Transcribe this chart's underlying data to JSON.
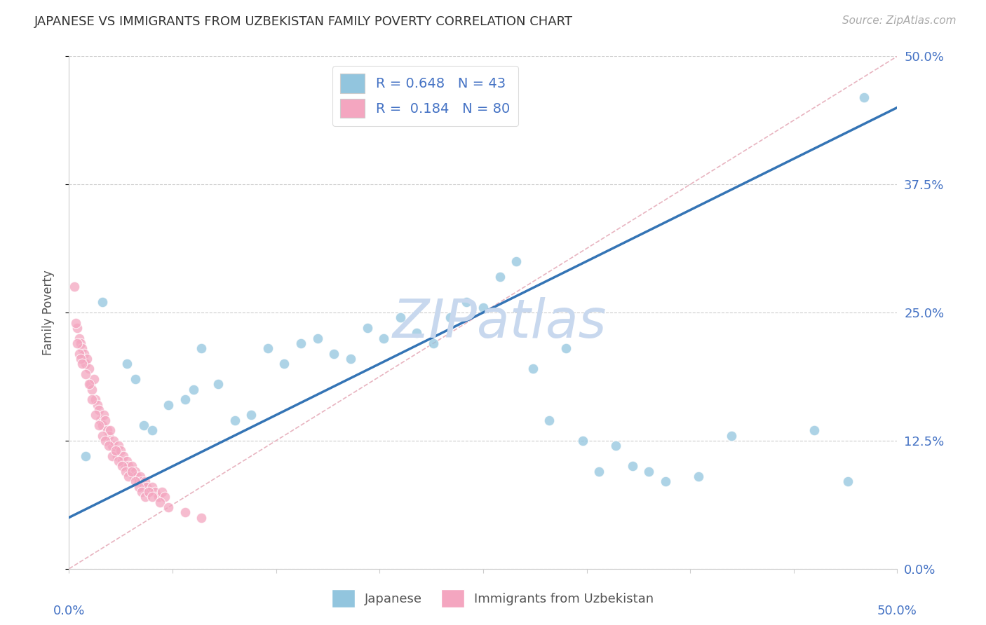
{
  "title": "JAPANESE VS IMMIGRANTS FROM UZBEKISTAN FAMILY POVERTY CORRELATION CHART",
  "source": "Source: ZipAtlas.com",
  "ylabel": "Family Poverty",
  "ytick_values": [
    0.0,
    12.5,
    25.0,
    37.5,
    50.0
  ],
  "xrange": [
    0.0,
    50.0
  ],
  "yrange": [
    0.0,
    50.0
  ],
  "legend_blue_r": "0.648",
  "legend_blue_n": "43",
  "legend_pink_r": "0.184",
  "legend_pink_n": "80",
  "blue_color": "#92c5de",
  "pink_color": "#f4a6c0",
  "regression_blue_color": "#3474b5",
  "diagonal_color": "#e8b4c0",
  "watermark_text": "ZIPatlas",
  "watermark_color": "#c8d8ee",
  "blue_scatter": [
    [
      1.0,
      11.0
    ],
    [
      2.0,
      26.0
    ],
    [
      3.5,
      20.0
    ],
    [
      4.0,
      18.5
    ],
    [
      4.5,
      14.0
    ],
    [
      5.0,
      13.5
    ],
    [
      6.0,
      16.0
    ],
    [
      7.0,
      16.5
    ],
    [
      7.5,
      17.5
    ],
    [
      8.0,
      21.5
    ],
    [
      9.0,
      18.0
    ],
    [
      10.0,
      14.5
    ],
    [
      11.0,
      15.0
    ],
    [
      12.0,
      21.5
    ],
    [
      13.0,
      20.0
    ],
    [
      14.0,
      22.0
    ],
    [
      15.0,
      22.5
    ],
    [
      16.0,
      21.0
    ],
    [
      17.0,
      20.5
    ],
    [
      18.0,
      23.5
    ],
    [
      19.0,
      22.5
    ],
    [
      20.0,
      24.5
    ],
    [
      21.0,
      23.0
    ],
    [
      22.0,
      22.0
    ],
    [
      23.0,
      24.5
    ],
    [
      24.0,
      26.0
    ],
    [
      25.0,
      25.5
    ],
    [
      26.0,
      28.5
    ],
    [
      27.0,
      30.0
    ],
    [
      28.0,
      19.5
    ],
    [
      29.0,
      14.5
    ],
    [
      30.0,
      21.5
    ],
    [
      31.0,
      12.5
    ],
    [
      32.0,
      9.5
    ],
    [
      33.0,
      12.0
    ],
    [
      34.0,
      10.0
    ],
    [
      35.0,
      9.5
    ],
    [
      36.0,
      8.5
    ],
    [
      38.0,
      9.0
    ],
    [
      40.0,
      13.0
    ],
    [
      45.0,
      13.5
    ],
    [
      47.0,
      8.5
    ],
    [
      48.0,
      46.0
    ]
  ],
  "pink_scatter": [
    [
      0.3,
      27.5
    ],
    [
      0.5,
      23.5
    ],
    [
      0.6,
      22.5
    ],
    [
      0.7,
      22.0
    ],
    [
      0.8,
      21.5
    ],
    [
      0.9,
      21.0
    ],
    [
      1.0,
      20.0
    ],
    [
      1.1,
      20.5
    ],
    [
      1.2,
      19.5
    ],
    [
      1.3,
      18.0
    ],
    [
      1.4,
      17.5
    ],
    [
      1.5,
      18.5
    ],
    [
      1.6,
      16.5
    ],
    [
      1.7,
      16.0
    ],
    [
      1.8,
      15.5
    ],
    [
      1.9,
      14.5
    ],
    [
      2.0,
      14.0
    ],
    [
      2.1,
      15.0
    ],
    [
      2.2,
      14.5
    ],
    [
      2.3,
      13.5
    ],
    [
      2.4,
      13.0
    ],
    [
      2.5,
      13.5
    ],
    [
      2.6,
      12.0
    ],
    [
      2.7,
      12.5
    ],
    [
      2.8,
      11.5
    ],
    [
      2.9,
      11.0
    ],
    [
      3.0,
      12.0
    ],
    [
      3.1,
      11.5
    ],
    [
      3.2,
      10.5
    ],
    [
      3.3,
      11.0
    ],
    [
      3.4,
      10.0
    ],
    [
      3.5,
      10.5
    ],
    [
      3.6,
      10.0
    ],
    [
      3.7,
      9.5
    ],
    [
      3.8,
      10.0
    ],
    [
      3.9,
      9.0
    ],
    [
      4.0,
      9.5
    ],
    [
      4.1,
      9.0
    ],
    [
      4.2,
      8.5
    ],
    [
      4.3,
      9.0
    ],
    [
      4.4,
      8.5
    ],
    [
      4.5,
      8.0
    ],
    [
      4.6,
      8.5
    ],
    [
      4.7,
      8.0
    ],
    [
      4.8,
      7.5
    ],
    [
      5.0,
      8.0
    ],
    [
      5.2,
      7.5
    ],
    [
      5.4,
      7.0
    ],
    [
      5.6,
      7.5
    ],
    [
      5.8,
      7.0
    ],
    [
      0.4,
      24.0
    ],
    [
      0.5,
      22.0
    ],
    [
      0.6,
      21.0
    ],
    [
      0.7,
      20.5
    ],
    [
      0.8,
      20.0
    ],
    [
      1.0,
      19.0
    ],
    [
      1.2,
      18.0
    ],
    [
      1.4,
      16.5
    ],
    [
      1.6,
      15.0
    ],
    [
      1.8,
      14.0
    ],
    [
      2.0,
      13.0
    ],
    [
      2.2,
      12.5
    ],
    [
      2.4,
      12.0
    ],
    [
      2.6,
      11.0
    ],
    [
      2.8,
      11.5
    ],
    [
      3.0,
      10.5
    ],
    [
      3.2,
      10.0
    ],
    [
      3.4,
      9.5
    ],
    [
      3.6,
      9.0
    ],
    [
      3.8,
      9.5
    ],
    [
      4.0,
      8.5
    ],
    [
      4.2,
      8.0
    ],
    [
      4.4,
      7.5
    ],
    [
      4.6,
      7.0
    ],
    [
      4.8,
      7.5
    ],
    [
      5.0,
      7.0
    ],
    [
      5.5,
      6.5
    ],
    [
      6.0,
      6.0
    ],
    [
      7.0,
      5.5
    ],
    [
      8.0,
      5.0
    ]
  ]
}
